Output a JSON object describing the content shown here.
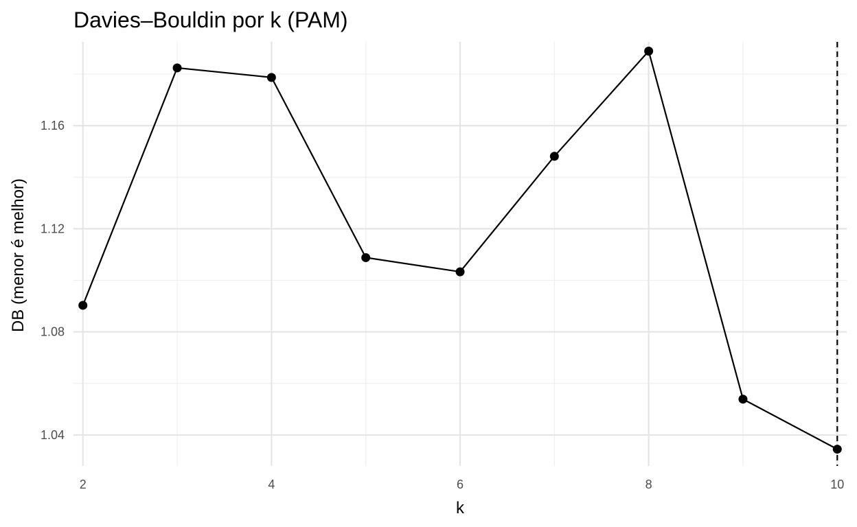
{
  "chart_data": {
    "type": "line",
    "title": "Davies–Bouldin por k (PAM)",
    "xlabel": "k",
    "ylabel": "DB (menor é melhor)",
    "x": [
      2,
      3,
      4,
      5,
      6,
      7,
      8,
      9,
      10
    ],
    "y": [
      1.0903,
      1.1824,
      1.1787,
      1.1088,
      1.1033,
      1.1481,
      1.1889,
      1.0539,
      1.0345
    ],
    "xlim": [
      1.9,
      10.1
    ],
    "ylim": [
      1.028,
      1.1925
    ],
    "x_ticks": [
      2,
      4,
      6,
      8,
      10
    ],
    "x_tick_labels": [
      "2",
      "4",
      "6",
      "8",
      "10"
    ],
    "y_ticks": [
      1.04,
      1.08,
      1.12,
      1.16
    ],
    "y_tick_labels": [
      "1.04",
      "1.08",
      "1.12",
      "1.16"
    ],
    "reference_line": {
      "x": 10,
      "style": "dashed"
    },
    "grid": true,
    "legend": false,
    "colors": {
      "series": "#000000",
      "grid": "#e5e5e5",
      "tick_text": "#4d4d4d"
    }
  }
}
